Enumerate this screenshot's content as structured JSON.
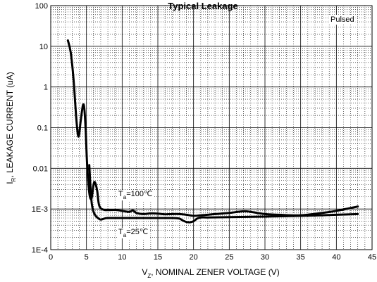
{
  "chart_data": {
    "type": "line",
    "title": "Typical Leakage",
    "xlabel": "V",
    "xlabel_sub": "Z",
    "xlabel_rest": ", NOMINAL ZENER VOLTAGE (V)",
    "ylabel": "I",
    "ylabel_sub": "R",
    "ylabel_rest": ", LEAKAGE CURRENT (uA)",
    "xlim": [
      0,
      45
    ],
    "ylim": [
      0.0001,
      100
    ],
    "yscale": "log",
    "grid": true,
    "x_ticks": [
      0,
      5,
      10,
      15,
      20,
      25,
      30,
      35,
      40,
      45
    ],
    "x_tick_labels": [
      "0",
      "5",
      "10",
      "15",
      "20",
      "25",
      "30",
      "35",
      "40",
      "45"
    ],
    "y_ticks": [
      0.0001,
      0.001,
      0.01,
      0.1,
      1,
      10,
      100
    ],
    "y_tick_labels": [
      "1E-4",
      "1E-3",
      "0.01",
      "0.1",
      "1",
      "10",
      "100"
    ],
    "annotation": "Pulsed",
    "series": [
      {
        "name": "Ta=100℃",
        "label_main": "T",
        "label_sub": "a",
        "label_rest": "=100℃",
        "x": [
          2.4,
          2.8,
          3.2,
          3.6,
          3.9,
          4.2,
          4.5,
          4.7,
          4.9,
          5.1,
          5.4,
          5.7,
          6.0,
          6.2,
          6.5,
          6.8,
          7.5,
          9,
          10,
          11,
          11.5,
          12,
          13,
          14,
          15,
          16,
          17,
          18,
          19,
          20,
          21,
          22,
          23,
          25,
          27,
          28,
          30,
          32,
          35,
          38,
          40,
          43
        ],
        "y": [
          14,
          7,
          1.5,
          0.15,
          0.06,
          0.15,
          0.35,
          0.3,
          0.08,
          0.012,
          0.0025,
          0.0018,
          0.004,
          0.0045,
          0.0028,
          0.0012,
          0.00095,
          0.00095,
          0.0009,
          0.00085,
          0.00092,
          0.0008,
          0.00075,
          0.00078,
          0.00077,
          0.00074,
          0.00075,
          0.00075,
          0.00072,
          0.00068,
          0.0007,
          0.00072,
          0.00075,
          0.0008,
          0.00088,
          0.00085,
          0.00075,
          0.00072,
          0.0007,
          0.0008,
          0.0009,
          0.00115
        ]
      },
      {
        "name": "Ta=25℃",
        "label_main": "T",
        "label_sub": "a",
        "label_rest": "=25℃",
        "x": [
          5.4,
          5.7,
          6.0,
          6.3,
          6.6,
          7.0,
          7.5,
          8,
          10,
          12,
          14,
          15,
          17,
          18,
          18.5,
          19,
          19.5,
          20,
          20.5,
          21,
          22,
          25,
          30,
          35,
          38,
          40,
          43
        ],
        "y": [
          0.012,
          0.0016,
          0.00085,
          0.00068,
          0.0006,
          0.00055,
          0.00058,
          0.0006,
          0.0006,
          0.0006,
          0.0006,
          0.0006,
          0.0006,
          0.00058,
          0.00052,
          0.00048,
          0.00047,
          0.0005,
          0.00058,
          0.00062,
          0.00062,
          0.00063,
          0.00065,
          0.00068,
          0.0007,
          0.00072,
          0.00075
        ]
      }
    ]
  }
}
